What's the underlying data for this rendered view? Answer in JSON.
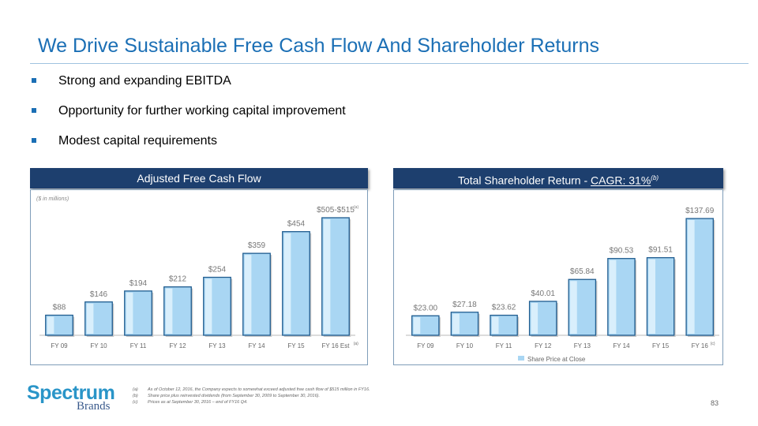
{
  "slide": {
    "title": "We Drive Sustainable Free Cash Flow And Shareholder Returns",
    "bullets": [
      "Strong and expanding EBITDA",
      "Opportunity for further working capital improvement",
      "Modest capital requirements"
    ],
    "page_number": "83"
  },
  "logo": {
    "word": "Spectrum",
    "sub": "Brands"
  },
  "footnotes": [
    {
      "key": "(a)",
      "text": "As of October 12, 2016, the Company expects to somewhat exceed adjusted free cash flow of $515 million in FY16."
    },
    {
      "key": "(b)",
      "text": "Share price plus reinvested dividends (from September 30, 2009 to September 30, 2016)."
    },
    {
      "key": "(c)",
      "text": "Prices as at September 30, 2016 – end of FY16 Q4."
    }
  ],
  "colors": {
    "title": "#1b6fb5",
    "header_bg": "#1d3f6e",
    "bar_fill": "#a9d6f3",
    "bar_edge": "#1f5c8f"
  },
  "left_panel": {
    "header": "Adjusted Free Cash Flow",
    "units": "($ in millions)"
  },
  "right_panel": {
    "header_prefix": "Total Shareholder Return - ",
    "header_cagr": "CAGR: 31%",
    "header_note": "(b)"
  },
  "chart_data": [
    {
      "type": "bar",
      "title": "Adjusted Free Cash Flow",
      "categories": [
        "FY 09",
        "FY 10",
        "FY 11",
        "FY 12",
        "FY 13",
        "FY 14",
        "FY 15",
        "FY 16 Est"
      ],
      "category_notes": [
        "",
        "",
        "",
        "",
        "",
        "",
        "",
        "(a)"
      ],
      "values": [
        88,
        146,
        194,
        212,
        254,
        359,
        454,
        515
      ],
      "data_labels": [
        "$88",
        "$146",
        "$194",
        "$212",
        "$254",
        "$359",
        "$454",
        "$505-$515"
      ],
      "label_notes": [
        "",
        "",
        "",
        "",
        "",
        "",
        "",
        "(a)"
      ],
      "ylim": [
        0,
        515
      ],
      "grid": false,
      "legend": null
    },
    {
      "type": "bar",
      "title": "Total Shareholder Return - CAGR: 31%",
      "categories": [
        "FY 09",
        "FY 10",
        "FY 11",
        "FY 12",
        "FY 13",
        "FY 14",
        "FY 15",
        "FY 16"
      ],
      "category_notes": [
        "",
        "",
        "",
        "",
        "",
        "",
        "",
        "(c)"
      ],
      "series": [
        {
          "name": "Share Price at Close",
          "values": [
            23.0,
            27.18,
            23.62,
            40.01,
            65.84,
            90.53,
            91.51,
            137.69
          ]
        }
      ],
      "data_labels": [
        "$23.00",
        "$27.18",
        "$23.62",
        "$40.01",
        "$65.84",
        "$90.53",
        "$91.51",
        "$137.69"
      ],
      "ylim": [
        0,
        137.69
      ],
      "grid": false,
      "legend": "bottom-center"
    }
  ]
}
